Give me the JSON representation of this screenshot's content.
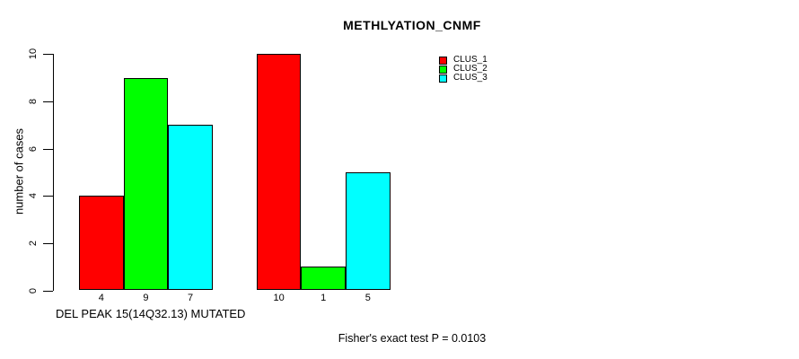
{
  "title": "METHLYATION_CNMF",
  "footer": "Fisher's exact test P = 0.0103",
  "chart_data": {
    "type": "bar",
    "title": "METHLYATION_CNMF",
    "xlabel": "DEL PEAK 15(14Q32.13) MUTATED",
    "ylabel": "number of cases",
    "ylim": [
      0,
      10
    ],
    "yticks": [
      0,
      2,
      4,
      6,
      8,
      10
    ],
    "n_groups": 2,
    "series": [
      {
        "name": "CLUS_1",
        "color": "#ff0000",
        "values": [
          4,
          10
        ]
      },
      {
        "name": "CLUS_2",
        "color": "#00ff00",
        "values": [
          9,
          1
        ]
      },
      {
        "name": "CLUS_3",
        "color": "#00ffff",
        "values": [
          7,
          5
        ]
      }
    ],
    "bar_value_labels": [
      [
        "4",
        "9",
        "7"
      ],
      [
        "10",
        "1",
        "5"
      ]
    ],
    "legend_position": "top-right",
    "grid": false,
    "background": "#ffffff",
    "annotation": "Fisher's exact test P = 0.0103"
  }
}
